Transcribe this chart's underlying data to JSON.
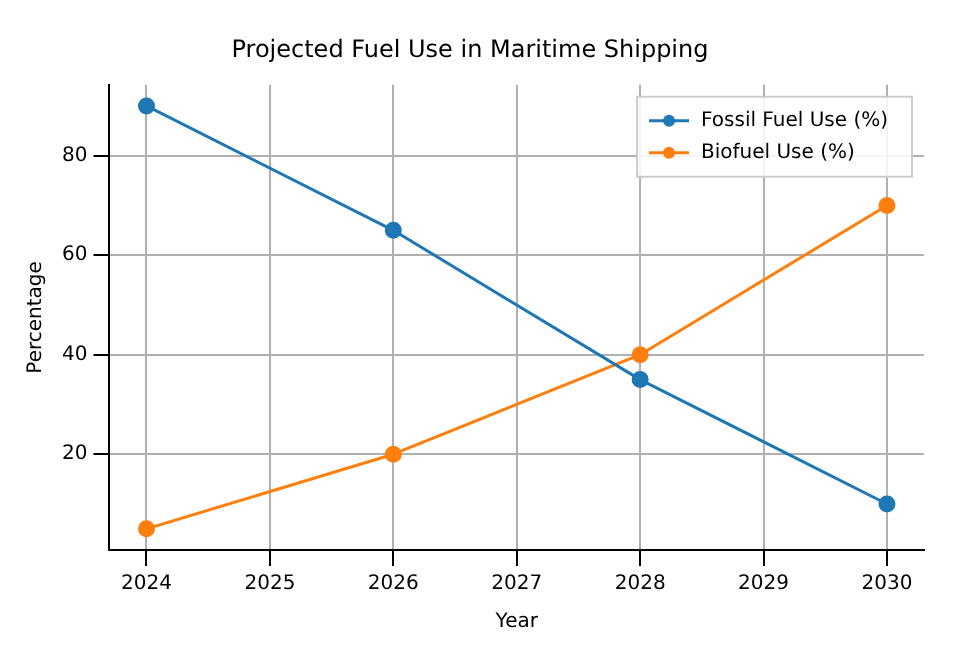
{
  "chart_data": {
    "type": "line",
    "title": "Projected Fuel Use in Maritime Shipping",
    "xlabel": "Year",
    "ylabel": "Percentage",
    "x": [
      2024,
      2026,
      2028,
      2030
    ],
    "series": [
      {
        "name": "Fossil Fuel Use (%)",
        "color": "#1f77b4",
        "values": [
          90,
          65,
          35,
          10
        ]
      },
      {
        "name": "Biofuel Use (%)",
        "color": "#ff7f0e",
        "values": [
          5,
          20,
          40,
          70
        ]
      }
    ],
    "xlim": [
      2023.7,
      2030.3
    ],
    "xticks": [
      2024,
      2025,
      2026,
      2027,
      2028,
      2029,
      2030
    ],
    "ylim": [
      0.75,
      94.25
    ],
    "yticks": [
      20,
      40,
      60,
      80
    ],
    "grid": true,
    "legend": "top right",
    "marker": "circle",
    "line_style": "solid"
  }
}
